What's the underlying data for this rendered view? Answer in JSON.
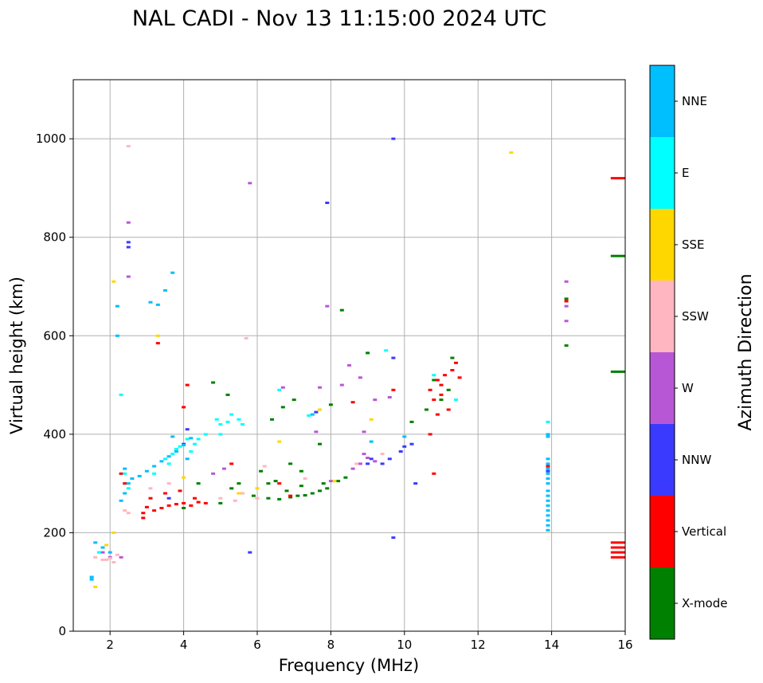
{
  "chart_data": {
    "type": "scatter",
    "title": "NAL CADI - Nov 13 11:15:00 2024 UTC",
    "xlabel": "Frequency (MHz)",
    "ylabel": "Virtual height (km)",
    "xlim": [
      1,
      16
    ],
    "ylim": [
      0,
      1120
    ],
    "xticks": [
      2,
      4,
      6,
      8,
      10,
      12,
      14,
      16
    ],
    "yticks": [
      0,
      200,
      400,
      600,
      800,
      1000
    ],
    "grid": true,
    "colorbar": {
      "label": "Azimuth Direction",
      "categories": [
        {
          "name": "X-mode",
          "color": "#008000"
        },
        {
          "name": "Vertical",
          "color": "#ff0000"
        },
        {
          "name": "NNW",
          "color": "#3a3aff"
        },
        {
          "name": "W",
          "color": "#b857d6"
        },
        {
          "name": "SSW",
          "color": "#ffb6c1"
        },
        {
          "name": "SSE",
          "color": "#ffd700"
        },
        {
          "name": "E",
          "color": "#00ffff"
        },
        {
          "name": "NNE",
          "color": "#00bfff"
        }
      ]
    },
    "series": [
      {
        "name": "X-mode",
        "points": [
          [
            6.3,
            270
          ],
          [
            6.6,
            268
          ],
          [
            6.9,
            272
          ],
          [
            7.1,
            275
          ],
          [
            7.3,
            276
          ],
          [
            7.5,
            280
          ],
          [
            7.7,
            285
          ],
          [
            7.9,
            290
          ],
          [
            8.2,
            305
          ],
          [
            8.4,
            312
          ],
          [
            5.9,
            275
          ],
          [
            6.3,
            300
          ],
          [
            6.5,
            305
          ],
          [
            6.8,
            285
          ],
          [
            7.2,
            295
          ],
          [
            6.1,
            325
          ],
          [
            6.7,
            455
          ],
          [
            7.0,
            470
          ],
          [
            6.4,
            430
          ],
          [
            8.3,
            652
          ],
          [
            9.0,
            565
          ],
          [
            14.4,
            580
          ],
          [
            14.4,
            675
          ],
          [
            15.8,
            762
          ],
          [
            15.8,
            527
          ],
          [
            10.2,
            425
          ],
          [
            10.6,
            450
          ],
          [
            11.0,
            470
          ],
          [
            11.3,
            555
          ],
          [
            4.8,
            505
          ],
          [
            5.2,
            480
          ],
          [
            7.7,
            380
          ],
          [
            8.0,
            460
          ],
          [
            5.5,
            300
          ],
          [
            5.3,
            290
          ],
          [
            7.2,
            325
          ],
          [
            7.8,
            300
          ],
          [
            5.0,
            260
          ],
          [
            4.0,
            250
          ],
          [
            4.4,
            300
          ],
          [
            6.9,
            340
          ],
          [
            11.2,
            490
          ],
          [
            10.8,
            510
          ]
        ]
      },
      {
        "name": "Vertical",
        "points": [
          [
            2.9,
            240
          ],
          [
            3.0,
            252
          ],
          [
            3.2,
            245
          ],
          [
            3.4,
            250
          ],
          [
            3.6,
            255
          ],
          [
            3.8,
            258
          ],
          [
            4.0,
            260
          ],
          [
            4.2,
            255
          ],
          [
            4.4,
            262
          ],
          [
            3.1,
            270
          ],
          [
            3.5,
            280
          ],
          [
            3.9,
            285
          ],
          [
            4.3,
            270
          ],
          [
            2.9,
            230
          ],
          [
            3.3,
            585
          ],
          [
            4.1,
            500
          ],
          [
            4.0,
            455
          ],
          [
            10.7,
            490
          ],
          [
            10.9,
            510
          ],
          [
            11.1,
            520
          ],
          [
            11.3,
            530
          ],
          [
            11.5,
            515
          ],
          [
            10.8,
            470
          ],
          [
            11.0,
            480
          ],
          [
            10.7,
            400
          ],
          [
            10.9,
            440
          ],
          [
            11.2,
            450
          ],
          [
            15.8,
            150
          ],
          [
            15.8,
            160
          ],
          [
            15.8,
            170
          ],
          [
            15.8,
            180
          ],
          [
            15.8,
            920
          ],
          [
            14.4,
            670
          ],
          [
            13.9,
            335
          ],
          [
            9.7,
            490
          ],
          [
            6.6,
            300
          ],
          [
            6.9,
            275
          ],
          [
            5.3,
            340
          ],
          [
            4.6,
            260
          ],
          [
            2.3,
            320
          ],
          [
            2.4,
            300
          ],
          [
            8.6,
            465
          ],
          [
            10.8,
            320
          ],
          [
            11.0,
            500
          ],
          [
            11.4,
            545
          ]
        ]
      },
      {
        "name": "NNW",
        "points": [
          [
            9.0,
            340
          ],
          [
            9.1,
            350
          ],
          [
            9.4,
            340
          ],
          [
            9.6,
            350
          ],
          [
            9.9,
            365
          ],
          [
            10.0,
            375
          ],
          [
            10.2,
            380
          ],
          [
            9.7,
            1000
          ],
          [
            9.7,
            190
          ],
          [
            7.9,
            870
          ],
          [
            2.5,
            780
          ],
          [
            2.5,
            790
          ],
          [
            5.8,
            160
          ],
          [
            4.0,
            380
          ],
          [
            3.6,
            270
          ],
          [
            9.7,
            555
          ],
          [
            4.1,
            410
          ],
          [
            13.9,
            325
          ],
          [
            10.3,
            300
          ],
          [
            7.6,
            445
          ]
        ]
      },
      {
        "name": "W",
        "points": [
          [
            8.6,
            330
          ],
          [
            8.8,
            340
          ],
          [
            9.0,
            352
          ],
          [
            9.2,
            345
          ],
          [
            8.9,
            360
          ],
          [
            14.4,
            710
          ],
          [
            14.4,
            660
          ],
          [
            14.4,
            630
          ],
          [
            2.5,
            830
          ],
          [
            2.5,
            720
          ],
          [
            5.8,
            910
          ],
          [
            7.9,
            660
          ],
          [
            8.5,
            540
          ],
          [
            8.8,
            515
          ],
          [
            9.2,
            470
          ],
          [
            8.3,
            500
          ],
          [
            7.7,
            495
          ],
          [
            6.7,
            495
          ],
          [
            4.8,
            320
          ],
          [
            5.1,
            330
          ],
          [
            1.8,
            160
          ],
          [
            2.0,
            150
          ],
          [
            2.3,
            150
          ],
          [
            9.6,
            475
          ],
          [
            8.9,
            405
          ],
          [
            8.0,
            305
          ],
          [
            7.6,
            405
          ]
        ]
      },
      {
        "name": "SSW",
        "points": [
          [
            1.6,
            150
          ],
          [
            1.8,
            145
          ],
          [
            2.0,
            148
          ],
          [
            2.2,
            155
          ],
          [
            2.4,
            245
          ],
          [
            2.5,
            240
          ],
          [
            5.4,
            265
          ],
          [
            5.0,
            270
          ],
          [
            5.6,
            280
          ],
          [
            6.0,
            270
          ],
          [
            6.2,
            335
          ],
          [
            2.5,
            985
          ],
          [
            3.6,
            300
          ],
          [
            3.1,
            290
          ],
          [
            8.7,
            340
          ],
          [
            9.4,
            360
          ],
          [
            5.7,
            595
          ],
          [
            7.3,
            310
          ],
          [
            1.9,
            145
          ],
          [
            2.1,
            140
          ]
        ]
      },
      {
        "name": "SSE",
        "points": [
          [
            12.9,
            972
          ],
          [
            9.1,
            430
          ],
          [
            7.7,
            450
          ],
          [
            1.6,
            90
          ],
          [
            2.1,
            200
          ],
          [
            2.1,
            710
          ],
          [
            3.3,
            600
          ],
          [
            6.0,
            290
          ],
          [
            6.6,
            385
          ],
          [
            8.1,
            305
          ],
          [
            5.5,
            280
          ],
          [
            1.9,
            175
          ],
          [
            4.0,
            312
          ]
        ]
      },
      {
        "name": "E",
        "points": [
          [
            3.5,
            350
          ],
          [
            3.7,
            360
          ],
          [
            3.9,
            375
          ],
          [
            4.1,
            390
          ],
          [
            4.3,
            380
          ],
          [
            4.6,
            400
          ],
          [
            5.0,
            420
          ],
          [
            5.3,
            440
          ],
          [
            5.6,
            420
          ],
          [
            3.8,
            370
          ],
          [
            4.2,
            365
          ],
          [
            5.2,
            425
          ],
          [
            3.2,
            320
          ],
          [
            3.6,
            340
          ],
          [
            13.9,
            425
          ],
          [
            10.8,
            520
          ],
          [
            2.3,
            480
          ],
          [
            9.5,
            570
          ],
          [
            6.6,
            490
          ],
          [
            4.4,
            390
          ],
          [
            2.5,
            290
          ],
          [
            5.0,
            400
          ],
          [
            2.4,
            320
          ],
          [
            4.9,
            430
          ],
          [
            11.4,
            470
          ],
          [
            7.4,
            438
          ],
          [
            1.7,
            160
          ],
          [
            5.5,
            430
          ]
        ]
      },
      {
        "name": "NNE",
        "points": [
          [
            2.8,
            315
          ],
          [
            3.0,
            325
          ],
          [
            3.2,
            335
          ],
          [
            3.4,
            345
          ],
          [
            3.6,
            355
          ],
          [
            3.8,
            365
          ],
          [
            4.0,
            378
          ],
          [
            4.2,
            392
          ],
          [
            2.5,
            300
          ],
          [
            2.4,
            280
          ],
          [
            2.3,
            265
          ],
          [
            2.6,
            310
          ],
          [
            3.5,
            692
          ],
          [
            3.7,
            728
          ],
          [
            3.3,
            663
          ],
          [
            3.1,
            668
          ],
          [
            13.9,
            205
          ],
          [
            13.9,
            215
          ],
          [
            13.9,
            225
          ],
          [
            13.9,
            235
          ],
          [
            13.9,
            245
          ],
          [
            13.9,
            255
          ],
          [
            13.9,
            265
          ],
          [
            13.9,
            275
          ],
          [
            13.9,
            285
          ],
          [
            13.9,
            300
          ],
          [
            13.9,
            310
          ],
          [
            13.9,
            320
          ],
          [
            13.9,
            330
          ],
          [
            13.9,
            340
          ],
          [
            13.9,
            350
          ],
          [
            13.9,
            395
          ],
          [
            13.9,
            400
          ],
          [
            1.5,
            110
          ],
          [
            1.5,
            105
          ],
          [
            2.2,
            600
          ],
          [
            2.2,
            660
          ],
          [
            9.1,
            385
          ],
          [
            10.0,
            395
          ],
          [
            2.4,
            330
          ],
          [
            1.6,
            180
          ],
          [
            1.8,
            170
          ],
          [
            2.0,
            160
          ],
          [
            7.5,
            440
          ],
          [
            3.7,
            395
          ],
          [
            4.1,
            350
          ]
        ]
      }
    ]
  }
}
